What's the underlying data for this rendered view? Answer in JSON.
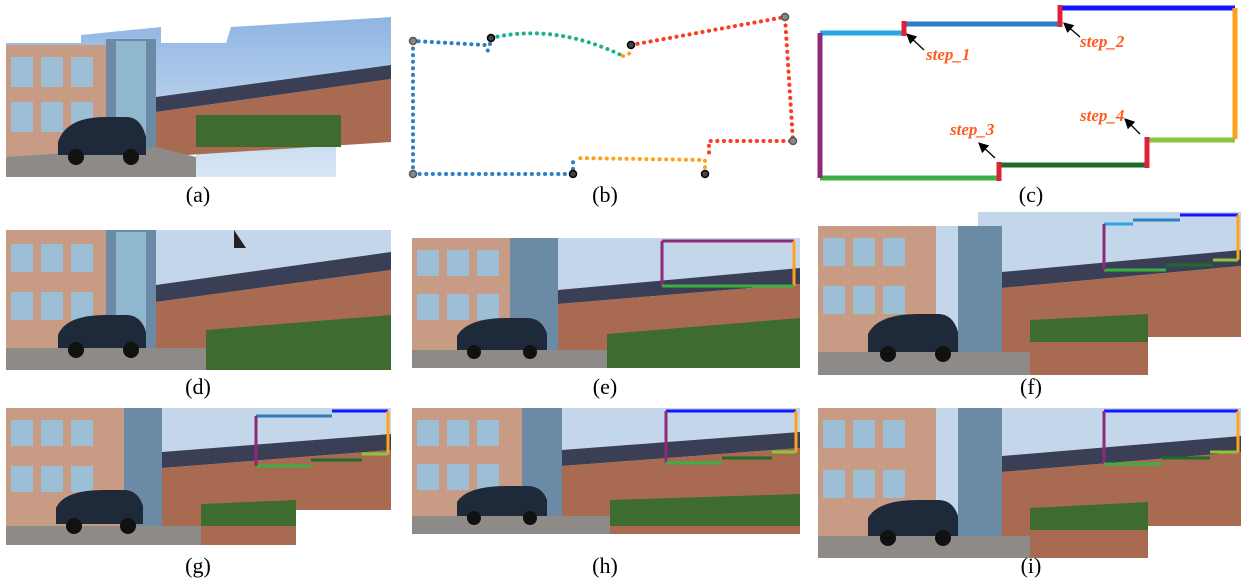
{
  "captions": {
    "a": "(a)",
    "b": "(b)",
    "c": "(c)",
    "d": "(d)",
    "e": "(e)",
    "f": "(f)",
    "g": "(g)",
    "h": "(h)",
    "i": "(i)"
  },
  "diagram_c": {
    "step_1": "step_1",
    "step_2": "step_2",
    "step_3": "step_3",
    "step_4": "step_4"
  },
  "colors": {
    "boundary_top_left": "#2d7fc3",
    "boundary_top_mid": "#1fb08f",
    "boundary_red": "#ff3b1f",
    "boundary_orange": "#ffa21a",
    "edge_light_blue": "#2aa6e8",
    "edge_blue": "#2d7fc3",
    "edge_top_right": "#1414ff",
    "edge_right": "#ffa21a",
    "edge_lime": "#8cc63f",
    "edge_dark_green": "#1f6b2e",
    "edge_green": "#3db044",
    "edge_purple": "#8e2a7a",
    "step_marker": "#e0203a",
    "step_text": "#ff5a1f"
  }
}
